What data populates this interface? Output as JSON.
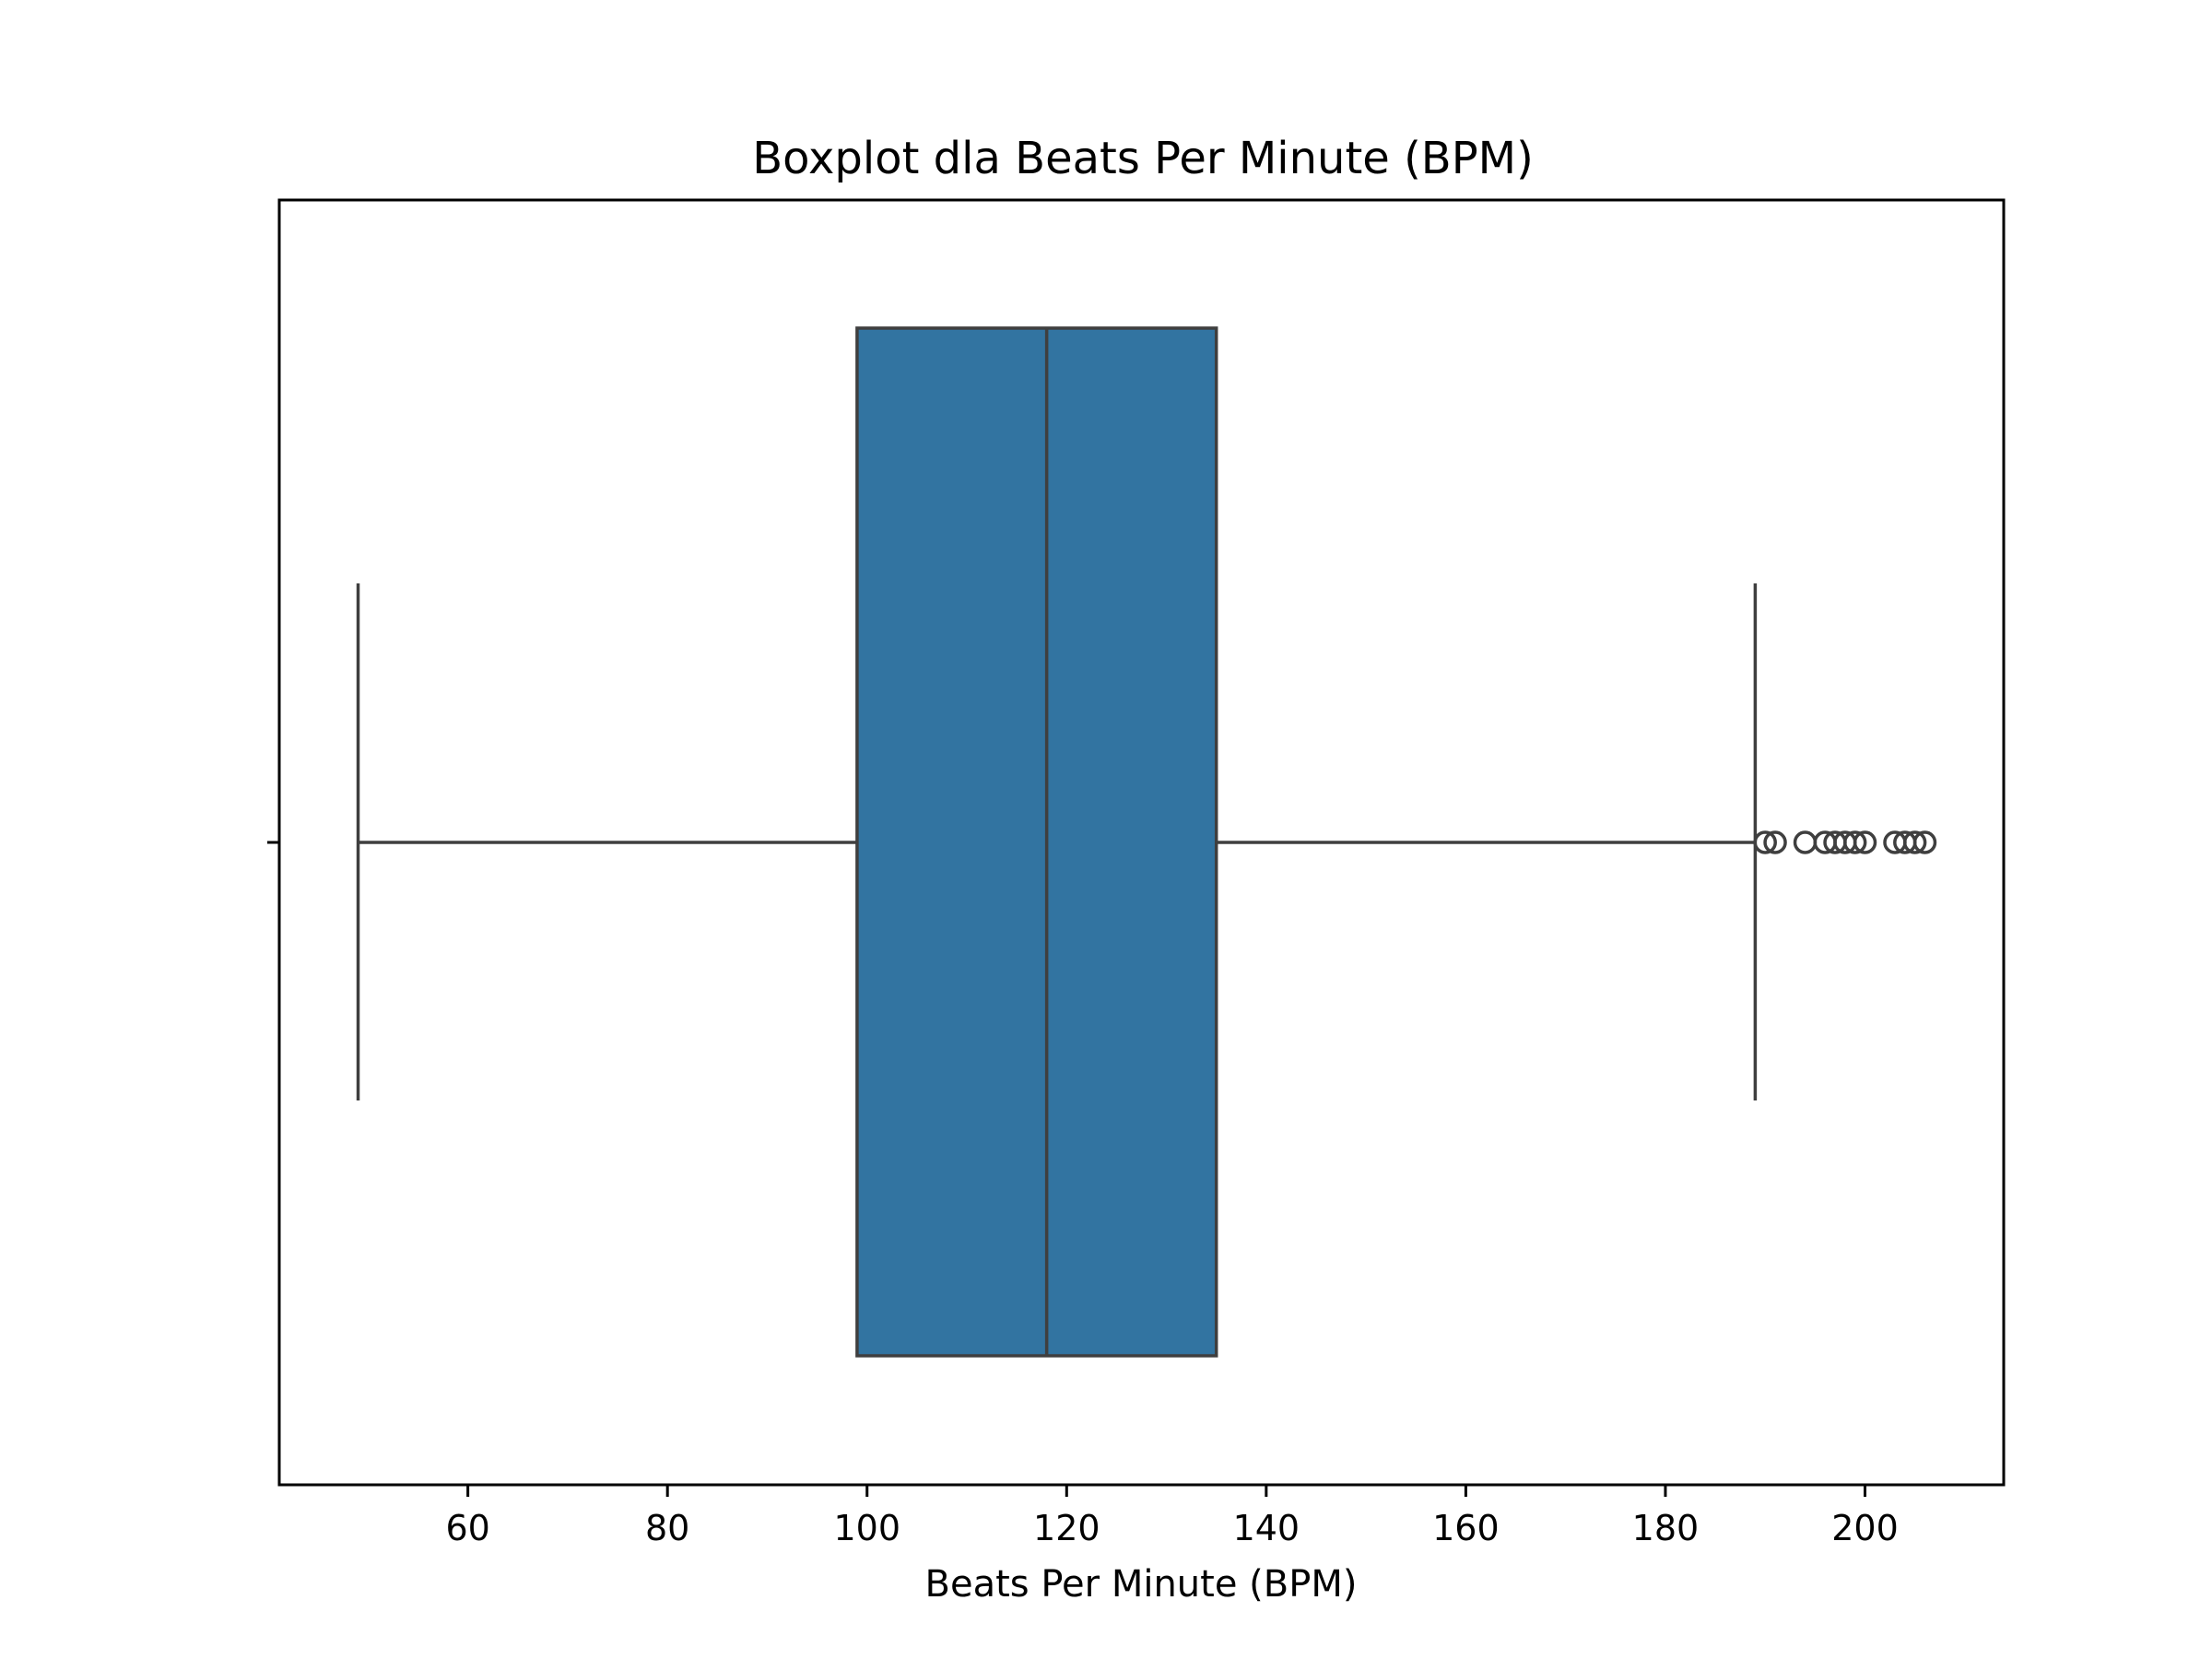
{
  "chart_data": {
    "type": "box",
    "title": "Boxplot dla Beats Per Minute (BPM)",
    "xlabel": "Beats Per Minute (BPM)",
    "ylabel": "",
    "xlim": [
      41.1,
      213.9
    ],
    "xticks": [
      60,
      80,
      100,
      120,
      140,
      160,
      180,
      200
    ],
    "grid": false,
    "box": {
      "whisker_low": 49,
      "q1": 99,
      "median": 118,
      "q3": 135,
      "whisker_high": 189,
      "outliers": [
        190,
        191,
        194,
        196,
        197,
        198,
        199,
        200,
        203,
        204,
        205,
        206
      ]
    },
    "colors": {
      "box_fill": "#3274a1",
      "line": "#3f3f3f",
      "axes": "#000000"
    }
  }
}
